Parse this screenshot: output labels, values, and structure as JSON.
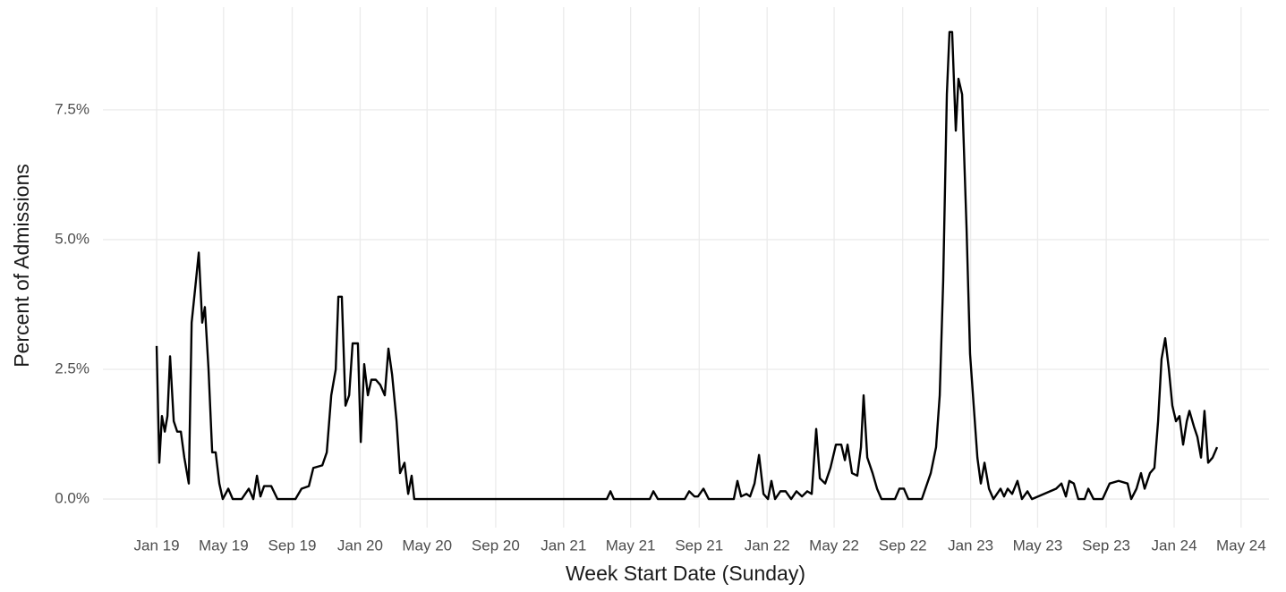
{
  "chart_data": {
    "type": "line",
    "x_label": "Week Start Date (Sunday)",
    "y_label": "Percent of Admissions",
    "xlim": [
      2018.736,
      2024.466
    ],
    "ylim": [
      -0.55,
      9.48
    ],
    "xticks": [
      {
        "value": 2019,
        "label": "Jan 19"
      },
      {
        "value": 2019.329,
        "label": "May 19"
      },
      {
        "value": 2019.666,
        "label": "Sep 19"
      },
      {
        "value": 2020,
        "label": "Jan 20"
      },
      {
        "value": 2020.329,
        "label": "May 20"
      },
      {
        "value": 2020.666,
        "label": "Sep 20"
      },
      {
        "value": 2021,
        "label": "Jan 21"
      },
      {
        "value": 2021.329,
        "label": "May 21"
      },
      {
        "value": 2021.666,
        "label": "Sep 21"
      },
      {
        "value": 2022,
        "label": "Jan 22"
      },
      {
        "value": 2022.329,
        "label": "May 22"
      },
      {
        "value": 2022.666,
        "label": "Sep 22"
      },
      {
        "value": 2023,
        "label": "Jan 23"
      },
      {
        "value": 2023.329,
        "label": "May 23"
      },
      {
        "value": 2023.666,
        "label": "Sep 23"
      },
      {
        "value": 2024,
        "label": "Jan 24"
      },
      {
        "value": 2024.329,
        "label": "May 24"
      }
    ],
    "yticks": [
      {
        "value": 0,
        "label": "0.0%"
      },
      {
        "value": 2.5,
        "label": "2.5%"
      },
      {
        "value": 5,
        "label": "5.0%"
      },
      {
        "value": 7.5,
        "label": "7.5%"
      }
    ],
    "grid": true,
    "color": "#000000",
    "x": [
      2019.0,
      2019.013,
      2019.026,
      2019.04,
      2019.053,
      2019.066,
      2019.084,
      2019.101,
      2019.119,
      2019.136,
      2019.158,
      2019.172,
      2019.193,
      2019.207,
      2019.224,
      2019.237,
      2019.255,
      2019.273,
      2019.29,
      2019.308,
      2019.325,
      2019.352,
      2019.374,
      2019.418,
      2019.453,
      2019.475,
      2019.493,
      2019.51,
      2019.528,
      2019.563,
      2019.594,
      2019.638,
      2019.682,
      2019.712,
      2019.748,
      2019.77,
      2019.814,
      2019.836,
      2019.858,
      2019.88,
      2019.893,
      2019.91,
      2019.928,
      2019.946,
      2019.963,
      2019.989,
      2020.003,
      2020.02,
      2020.038,
      2020.055,
      2020.077,
      2020.099,
      2020.121,
      2020.139,
      2020.157,
      2020.179,
      2020.196,
      2020.218,
      2020.236,
      2020.253,
      2020.266,
      2020.429,
      2020.693,
      2020.957,
      2021.212,
      2021.23,
      2021.247,
      2021.309,
      2021.423,
      2021.441,
      2021.463,
      2021.595,
      2021.617,
      2021.643,
      2021.66,
      2021.687,
      2021.713,
      2021.836,
      2021.854,
      2021.872,
      2021.898,
      2021.916,
      2021.938,
      2021.96,
      2021.982,
      2022.004,
      2022.021,
      2022.039,
      2022.065,
      2022.091,
      2022.118,
      2022.144,
      2022.171,
      2022.197,
      2022.219,
      2022.241,
      2022.259,
      2022.285,
      2022.311,
      2022.338,
      2022.364,
      2022.382,
      2022.395,
      2022.417,
      2022.443,
      2022.461,
      2022.474,
      2022.492,
      2022.518,
      2022.54,
      2022.562,
      2022.628,
      2022.65,
      2022.672,
      2022.694,
      2022.76,
      2022.804,
      2022.83,
      2022.848,
      2022.865,
      2022.883,
      2022.896,
      2022.909,
      2022.927,
      2022.94,
      2022.958,
      2022.98,
      2022.997,
      2023.015,
      2023.033,
      2023.05,
      2023.068,
      2023.09,
      2023.112,
      2023.147,
      2023.164,
      2023.182,
      2023.204,
      2023.23,
      2023.252,
      2023.279,
      2023.301,
      2023.42,
      2023.446,
      2023.468,
      2023.485,
      2023.507,
      2023.529,
      2023.56,
      2023.578,
      2023.604,
      2023.648,
      2023.683,
      2023.727,
      2023.771,
      2023.789,
      2023.815,
      2023.837,
      2023.855,
      2023.881,
      2023.903,
      2023.921,
      2023.938,
      2023.956,
      2023.974,
      2023.991,
      2024.009,
      2024.026,
      2024.044,
      2024.062,
      2024.075,
      2024.097,
      2024.114,
      2024.132,
      2024.149,
      2024.167,
      2024.189,
      2024.211
    ],
    "values": [
      2.95,
      0.7,
      1.6,
      1.3,
      1.6,
      2.75,
      1.5,
      1.3,
      1.3,
      0.8,
      0.3,
      3.4,
      4.2,
      4.75,
      3.4,
      3.7,
      2.5,
      0.9,
      0.9,
      0.3,
      0,
      0.2,
      0,
      0,
      0.2,
      0,
      0.45,
      0.05,
      0.25,
      0.25,
      0,
      0,
      0,
      0.2,
      0.25,
      0.6,
      0.65,
      0.9,
      2.0,
      2.5,
      3.9,
      3.9,
      1.8,
      2.0,
      3.0,
      3.0,
      1.1,
      2.6,
      2.0,
      2.3,
      2.3,
      2.2,
      2.0,
      2.9,
      2.4,
      1.5,
      0.5,
      0.7,
      0.1,
      0.45,
      0,
      0,
      0,
      0,
      0,
      0.15,
      0,
      0,
      0,
      0.15,
      0,
      0,
      0.15,
      0.05,
      0.05,
      0.2,
      0,
      0,
      0.35,
      0.05,
      0.1,
      0.05,
      0.3,
      0.85,
      0.1,
      0,
      0.35,
      0,
      0.15,
      0.15,
      0,
      0.15,
      0.05,
      0.15,
      0.1,
      1.35,
      0.4,
      0.3,
      0.6,
      1.05,
      1.05,
      0.75,
      1.05,
      0.5,
      0.45,
      1.0,
      2.0,
      0.8,
      0.5,
      0.2,
      0,
      0,
      0.2,
      0.2,
      0,
      0,
      0.5,
      1.0,
      2.0,
      4.2,
      7.8,
      9.0,
      9.0,
      7.1,
      8.1,
      7.8,
      5.2,
      2.8,
      1.8,
      0.8,
      0.3,
      0.7,
      0.2,
      0,
      0.2,
      0.05,
      0.2,
      0.1,
      0.35,
      0,
      0.15,
      0,
      0.2,
      0.3,
      0.05,
      0.35,
      0.3,
      0,
      0,
      0.2,
      0,
      0,
      0.3,
      0.35,
      0.3,
      0,
      0.2,
      0.5,
      0.2,
      0.5,
      0.6,
      1.5,
      2.7,
      3.1,
      2.5,
      1.8,
      1.5,
      1.6,
      1.05,
      1.5,
      1.7,
      1.4,
      1.2,
      0.8,
      1.7,
      0.7,
      0.8,
      1.0
    ]
  }
}
